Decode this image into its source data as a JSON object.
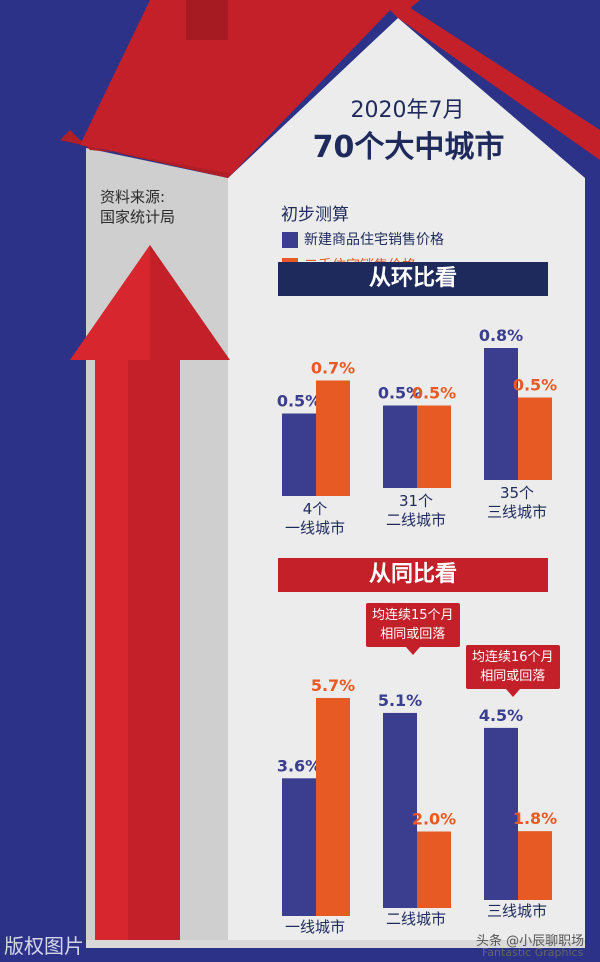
{
  "header": {
    "date": "2020年7月",
    "title": "70个大中城市",
    "source_label": "资料来源:",
    "source_name": "国家统计局"
  },
  "legend": {
    "heading": "初步测算",
    "items": [
      {
        "label": "新建商品住宅销售价格",
        "color": "#3b3d8f"
      },
      {
        "label": "二手住宅销售价格",
        "color": "#e85a24"
      }
    ]
  },
  "colors": {
    "background": "#2b3287",
    "roof": "#c4202a",
    "wall": "#ececec",
    "new_home": "#3b3d8f",
    "second_hand": "#e85a24",
    "banner_mom": "#1f2a5c",
    "banner_yoy": "#c4202a"
  },
  "chart_data": [
    {
      "type": "bar",
      "title": "从环比看",
      "categories": [
        [
          "4个",
          "一线城市"
        ],
        [
          "31个",
          "二线城市"
        ],
        [
          "35个",
          "三线城市"
        ]
      ],
      "series": [
        {
          "name": "新建商品住宅销售价格",
          "values": [
            0.5,
            0.5,
            0.8
          ],
          "labels": [
            "0.5%",
            "0.5%",
            "0.8%"
          ]
        },
        {
          "name": "二手住宅销售价格",
          "values": [
            0.7,
            0.5,
            0.5
          ],
          "labels": [
            "0.7%",
            "0.5%",
            "0.5%"
          ]
        }
      ],
      "ylim": [
        0,
        0.8
      ]
    },
    {
      "type": "bar",
      "title": "从同比看",
      "categories": [
        [
          "一线城市"
        ],
        [
          "二线城市"
        ],
        [
          "三线城市"
        ]
      ],
      "series": [
        {
          "name": "新建商品住宅销售价格",
          "values": [
            3.6,
            5.1,
            4.5
          ],
          "labels": [
            "3.6%",
            "5.1%",
            "4.5%"
          ]
        },
        {
          "name": "二手住宅销售价格",
          "values": [
            5.7,
            2.0,
            1.8
          ],
          "labels": [
            "5.7%",
            "2.0%",
            "1.8%"
          ]
        }
      ],
      "ylim": [
        0,
        5.7
      ],
      "annotations": [
        {
          "text": [
            "均连续15个月",
            "相同或回落"
          ],
          "category_index": 1
        },
        {
          "text": [
            "均连续16个月",
            "相同或回落"
          ],
          "category_index": 2
        }
      ]
    }
  ],
  "watermarks": {
    "left": "版权图片",
    "right_brand": "头条 @小辰聊职场",
    "right_credit": "Fantastic Graphics"
  }
}
